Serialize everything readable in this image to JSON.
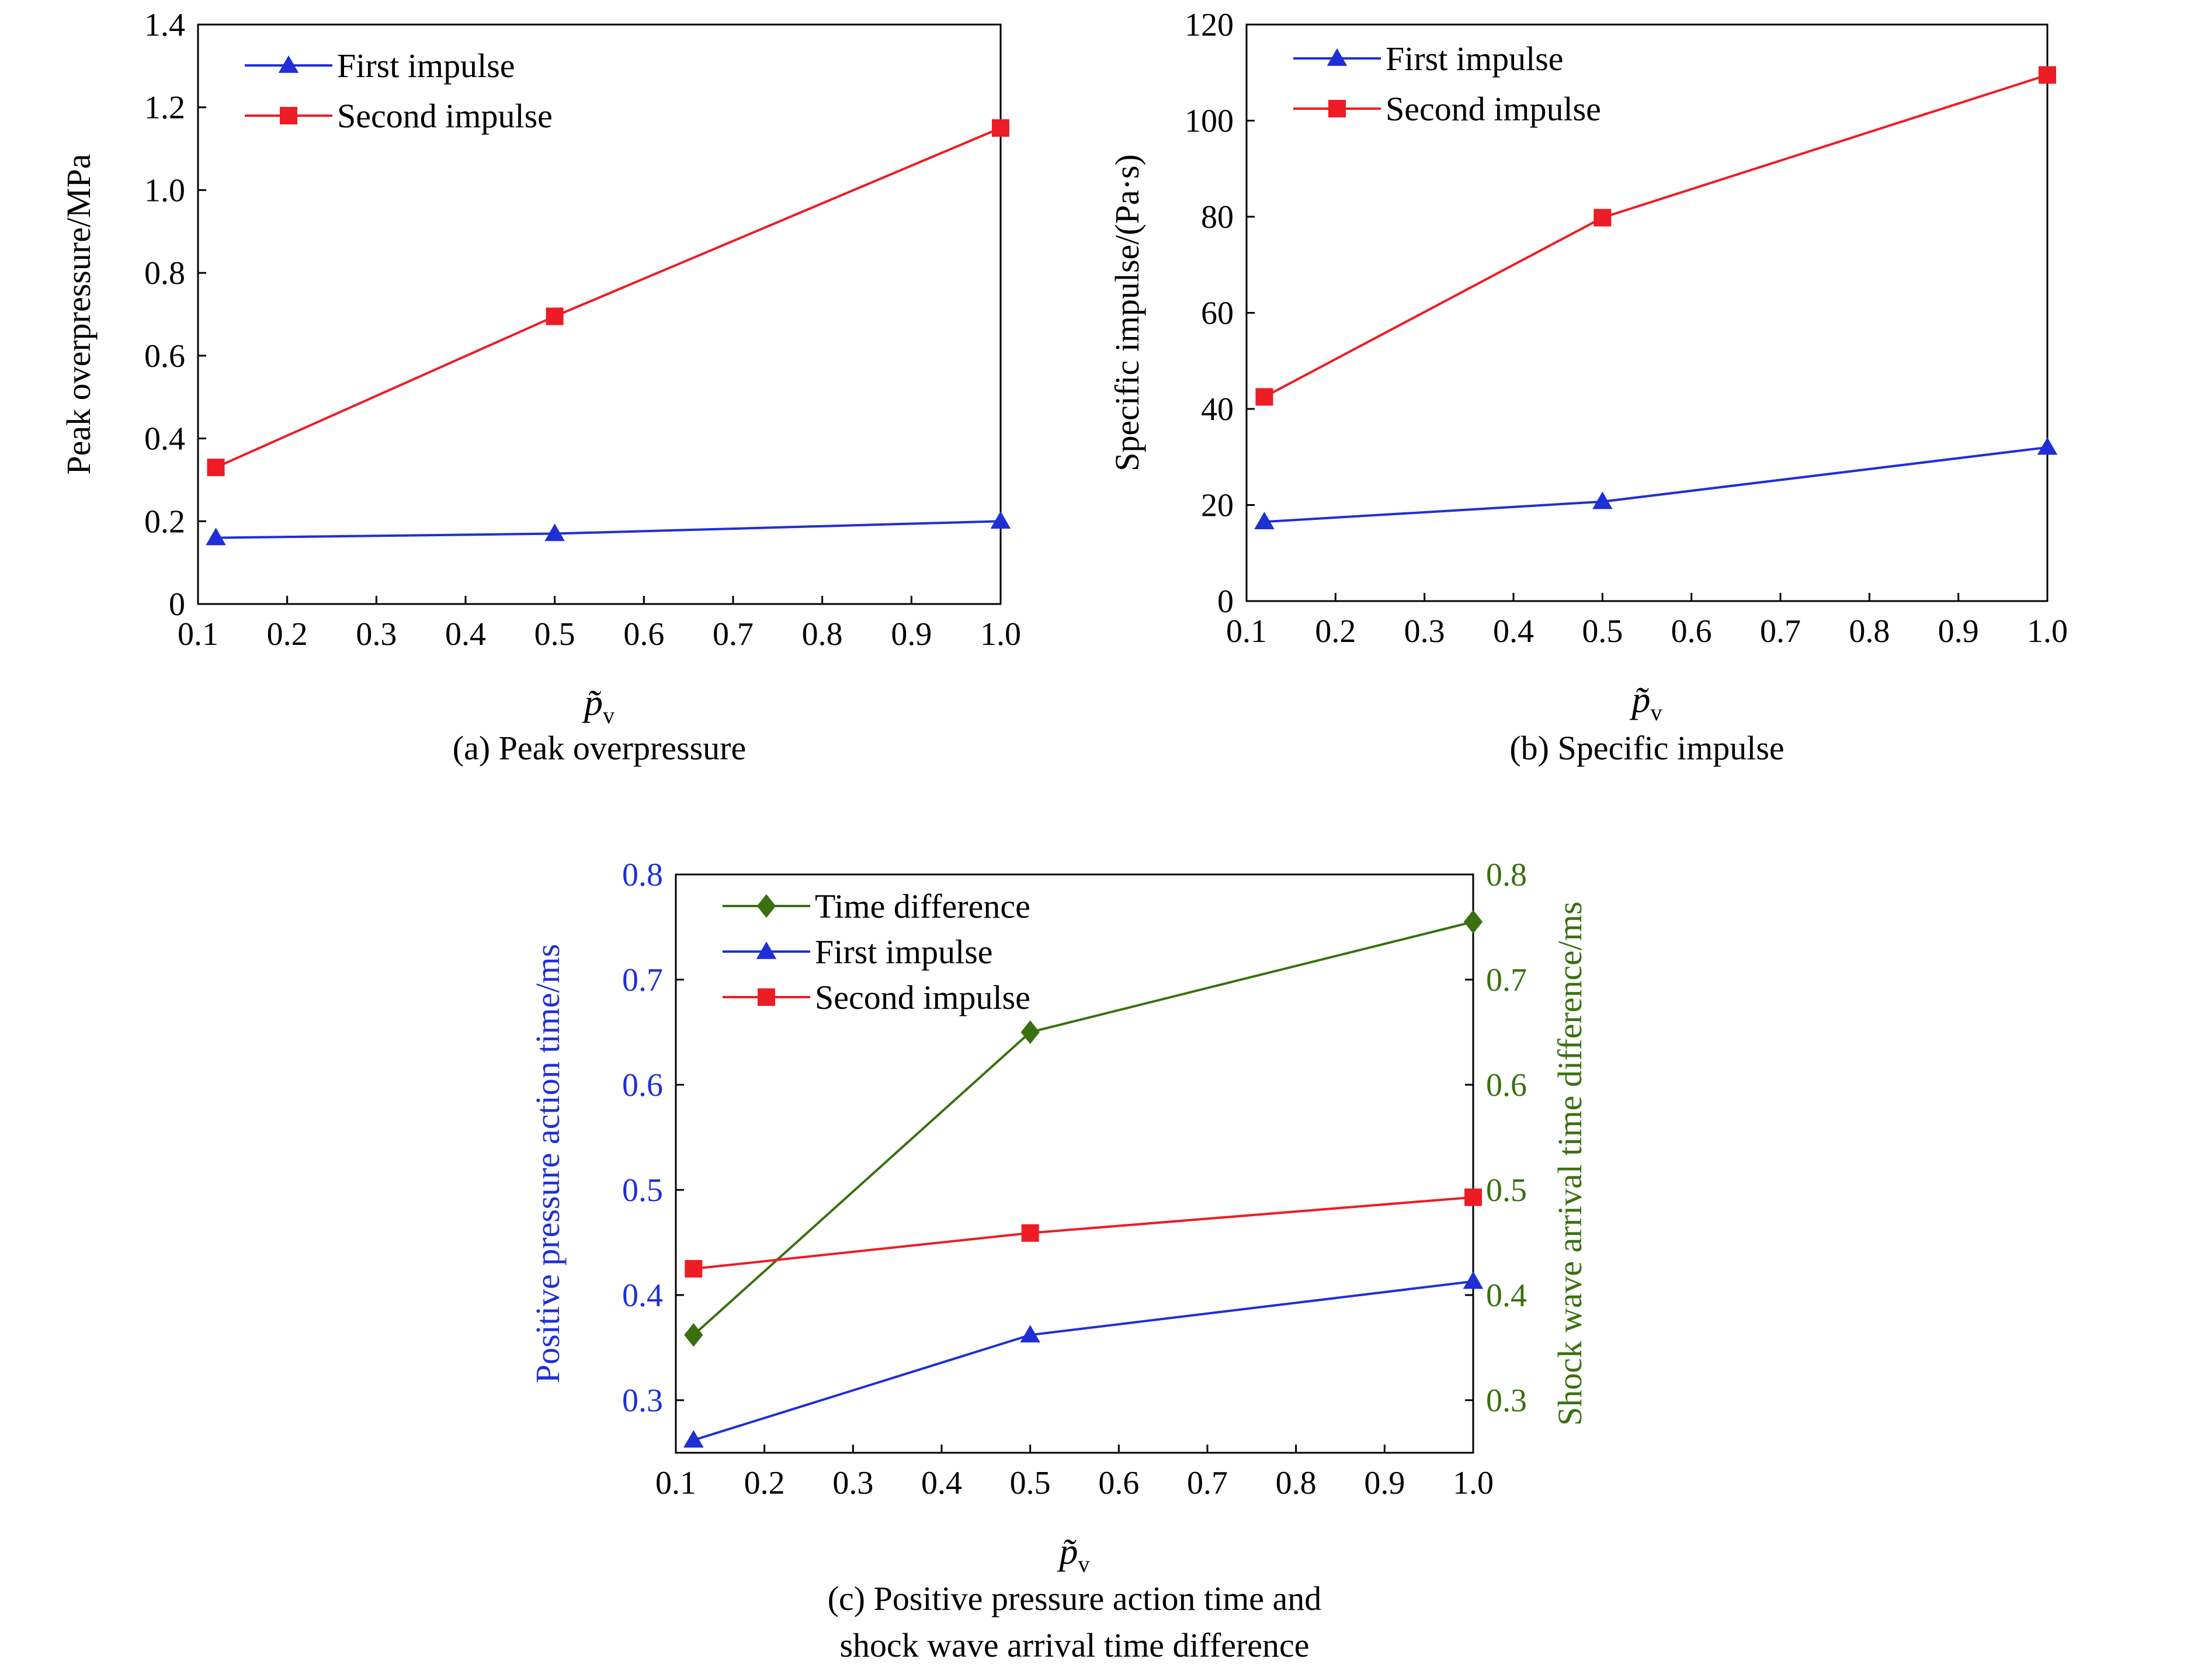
{
  "chart_data": [
    {
      "type": "line",
      "caption": "(a) Peak overpressure",
      "xlabel": "p̃",
      "xlabel_sub": "v",
      "ylabel": "Peak overpressure/MPa",
      "xlim": [
        0.1,
        1.0
      ],
      "ylim": [
        0,
        1.4
      ],
      "xticks": [
        "0.1",
        "0.2",
        "0.3",
        "0.4",
        "0.5",
        "0.6",
        "0.7",
        "0.8",
        "0.9",
        "1.0"
      ],
      "yticks": [
        "0",
        "0.2",
        "0.4",
        "0.6",
        "0.8",
        "1.0",
        "1.2",
        "1.4"
      ],
      "legend_position": "top-left",
      "grid": false,
      "series": [
        {
          "name": "First impulse",
          "color": "#1f2fd6",
          "marker": "triangle",
          "x": [
            0.12,
            0.5,
            1.0
          ],
          "y": [
            0.16,
            0.17,
            0.2
          ]
        },
        {
          "name": "Second impulse",
          "color": "#ee1c24",
          "marker": "square",
          "x": [
            0.12,
            0.5,
            1.0
          ],
          "y": [
            0.33,
            0.695,
            1.15
          ]
        }
      ]
    },
    {
      "type": "line",
      "caption": "(b) Specific impulse",
      "xlabel": "p̃",
      "xlabel_sub": "v",
      "ylabel": "Specific impulse/(Pa·s)",
      "xlim": [
        0.1,
        1.0
      ],
      "ylim": [
        0,
        120
      ],
      "xticks": [
        "0.1",
        "0.2",
        "0.3",
        "0.4",
        "0.5",
        "0.6",
        "0.7",
        "0.8",
        "0.9",
        "1.0"
      ],
      "yticks": [
        "0",
        "20",
        "40",
        "60",
        "80",
        "100",
        "120"
      ],
      "legend_position": "top-left",
      "grid": false,
      "series": [
        {
          "name": "First impulse",
          "color": "#1f2fd6",
          "marker": "triangle",
          "x": [
            0.12,
            0.5,
            1.0
          ],
          "y": [
            16.5,
            20.7,
            32
          ]
        },
        {
          "name": "Second impulse",
          "color": "#ee1c24",
          "marker": "square",
          "x": [
            0.12,
            0.5,
            1.0
          ],
          "y": [
            42.5,
            79.8,
            109.5
          ]
        }
      ]
    },
    {
      "type": "line",
      "caption_lines": [
        "(c) Positive pressure action time and",
        "shock wave arrival time difference"
      ],
      "xlabel": "p̃",
      "xlabel_sub": "v",
      "ylabel": "Positive pressure action time/ms",
      "ylabel_color": "#1f2fd6",
      "ylabel_right": "Shock wave arrival time difference/ms",
      "ylabel_right_color": "#3a7010",
      "xlim": [
        0.1,
        1.0
      ],
      "ylim": [
        0.25,
        0.8
      ],
      "ylim_right": [
        0.25,
        0.8
      ],
      "xticks": [
        "0.1",
        "0.2",
        "0.3",
        "0.4",
        "0.5",
        "0.6",
        "0.7",
        "0.8",
        "0.9",
        "1.0"
      ],
      "yticks": [
        "0.3",
        "0.4",
        "0.5",
        "0.6",
        "0.7",
        "0.8"
      ],
      "yticks_right": [
        "0.3",
        "0.4",
        "0.5",
        "0.6",
        "0.7",
        "0.8"
      ],
      "legend_position": "top-left",
      "grid": false,
      "series": [
        {
          "name": "Time difference",
          "color": "#3a7010",
          "marker": "diamond",
          "axis": "right",
          "x": [
            0.12,
            0.5,
            1.0
          ],
          "y": [
            0.362,
            0.65,
            0.755
          ]
        },
        {
          "name": "First impulse",
          "color": "#1f2fd6",
          "marker": "triangle",
          "axis": "left",
          "x": [
            0.12,
            0.5,
            1.0
          ],
          "y": [
            0.262,
            0.362,
            0.413
          ]
        },
        {
          "name": "Second impulse",
          "color": "#ee1c24",
          "marker": "square",
          "axis": "left",
          "x": [
            0.12,
            0.5,
            1.0
          ],
          "y": [
            0.425,
            0.459,
            0.493
          ]
        }
      ]
    }
  ]
}
